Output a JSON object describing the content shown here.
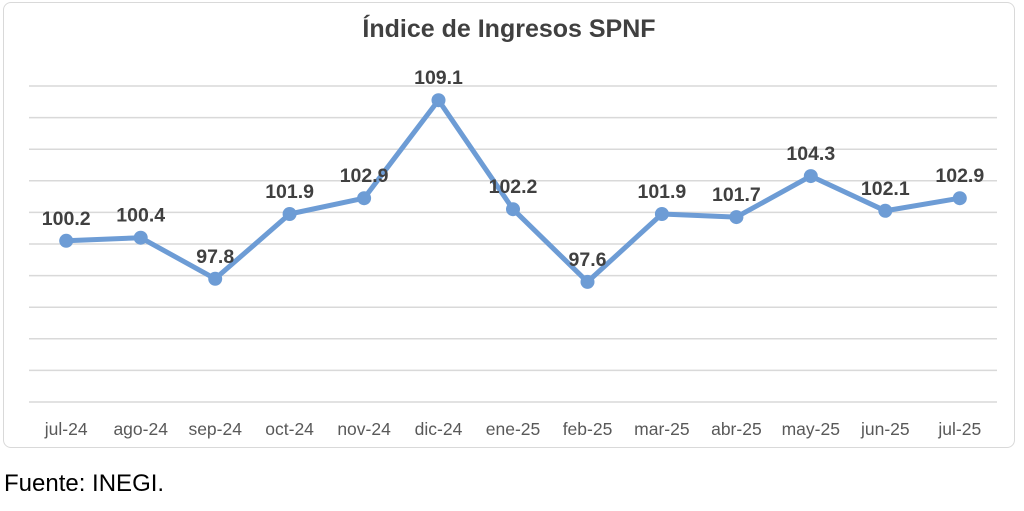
{
  "chart_data": {
    "type": "line",
    "title": "Índice de Ingresos SPNF",
    "categories": [
      "jul-24",
      "ago-24",
      "sep-24",
      "oct-24",
      "nov-24",
      "dic-24",
      "ene-25",
      "feb-25",
      "mar-25",
      "abr-25",
      "may-25",
      "jun-25",
      "jul-25"
    ],
    "values": [
      100.2,
      100.4,
      97.8,
      101.9,
      102.9,
      109.1,
      102.2,
      97.6,
      101.9,
      101.7,
      104.3,
      102.1,
      102.9
    ],
    "ylim": [
      90,
      110
    ],
    "gridline_step": 2,
    "grid": true,
    "legend": "none",
    "data_labels": "above",
    "line_color": "#6D9CD5",
    "marker_color": "#6D9CD5",
    "data_label_color": "#404040",
    "axis_text_color": "#595959",
    "gridline_color": "#D9D9D9",
    "xlabel": "",
    "ylabel": ""
  },
  "source_note": "Fuente: INEGI."
}
